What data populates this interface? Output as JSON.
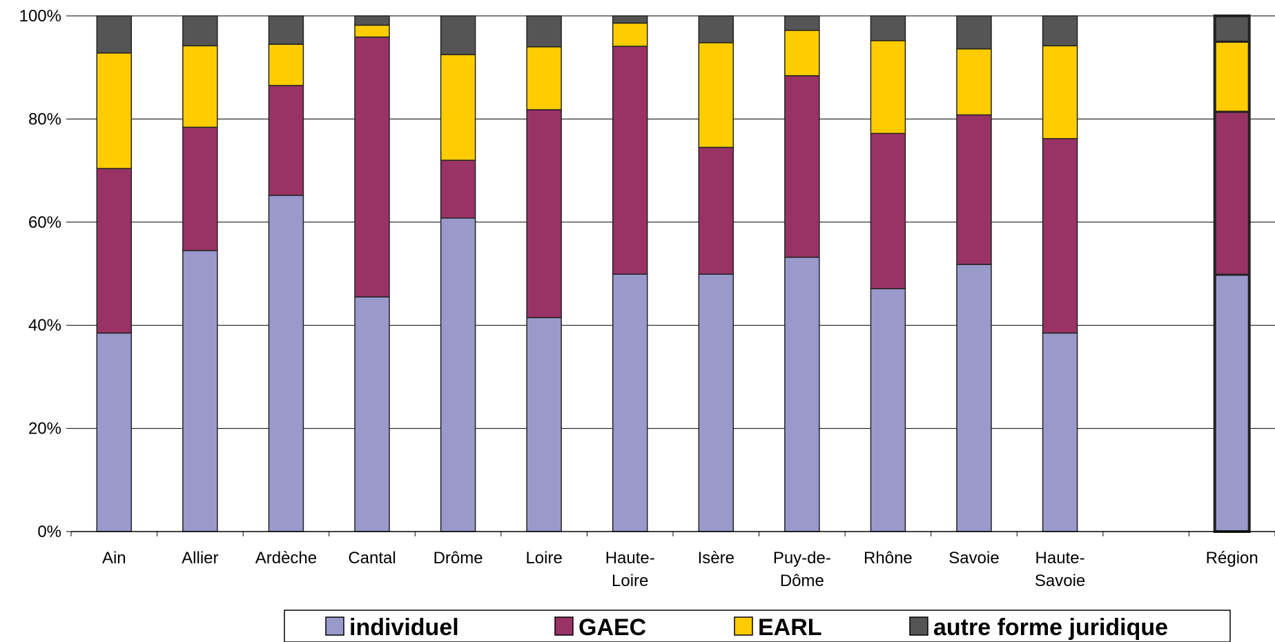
{
  "chart_data": {
    "type": "bar",
    "stacked": true,
    "normalized": true,
    "title": "",
    "xlabel": "",
    "ylabel": "",
    "ylim": [
      0,
      100
    ],
    "y_ticks": [
      "0%",
      "20%",
      "40%",
      "60%",
      "80%",
      "100%"
    ],
    "grid": true,
    "legend_position": "bottom",
    "categories": [
      [
        "Ain"
      ],
      [
        "Allier"
      ],
      [
        "Ardèche"
      ],
      [
        "Cantal"
      ],
      [
        "Drôme"
      ],
      [
        "Loire"
      ],
      [
        "Haute-",
        "Loire"
      ],
      [
        "Isère"
      ],
      [
        "Puy-de-",
        "Dôme"
      ],
      [
        "Rhône"
      ],
      [
        "Savoie"
      ],
      [
        "Haute-",
        "Savoie"
      ],
      [
        ""
      ],
      [
        "Région"
      ]
    ],
    "series": [
      {
        "name": "individuel",
        "color": "#9999cc",
        "values": [
          38.5,
          54.5,
          65.2,
          45.5,
          60.8,
          41.5,
          49.9,
          49.9,
          53.2,
          47.1,
          51.8,
          38.5,
          null,
          49.8
        ]
      },
      {
        "name": "GAEC",
        "color": "#993366",
        "values": [
          31.9,
          23.9,
          21.3,
          50.4,
          11.2,
          40.3,
          44.2,
          24.6,
          35.2,
          30.1,
          29.0,
          37.7,
          null,
          31.6
        ]
      },
      {
        "name": "EARL",
        "color": "#ffcc00",
        "values": [
          22.4,
          15.8,
          8.0,
          2.3,
          20.5,
          12.2,
          4.5,
          20.3,
          8.8,
          18.0,
          12.8,
          18.0,
          null,
          13.6
        ]
      },
      {
        "name": "autre forme juridique",
        "color": "#555555",
        "values": [
          7.2,
          5.8,
          5.5,
          1.8,
          7.5,
          6.0,
          1.4,
          5.2,
          2.8,
          4.8,
          6.4,
          5.8,
          null,
          5.0
        ]
      }
    ],
    "highlighted_category_index": 13
  }
}
